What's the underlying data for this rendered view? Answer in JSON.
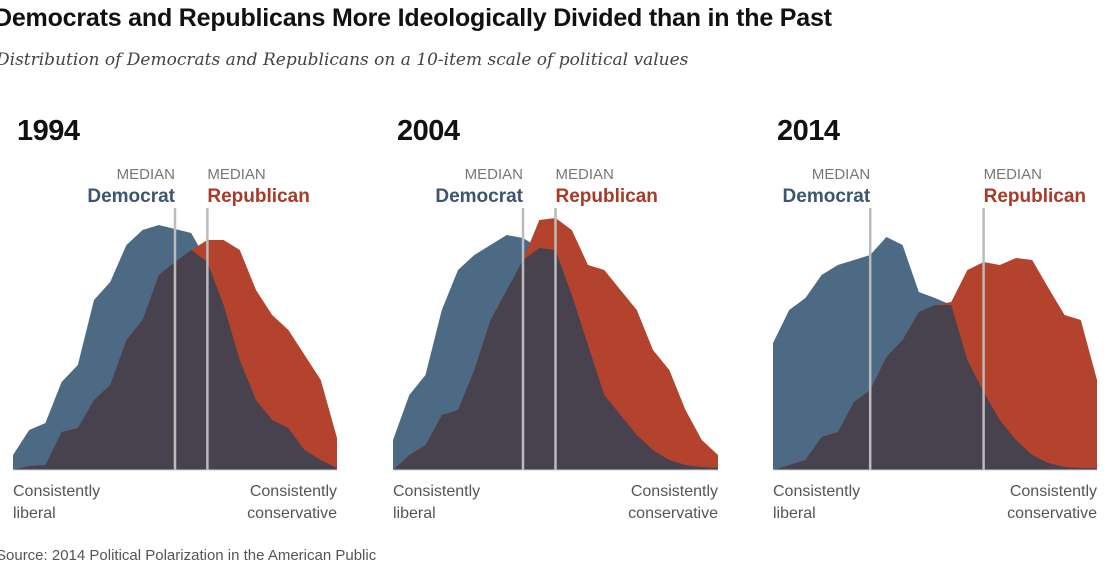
{
  "chart_data": [
    {
      "type": "area",
      "title": "1994",
      "x": [
        -10,
        -9,
        -8,
        -7,
        -6,
        -5,
        -4,
        -3,
        -2,
        -1,
        0,
        1,
        2,
        3,
        4,
        5,
        6,
        7,
        8,
        9,
        10
      ],
      "series": [
        {
          "name": "Democrat",
          "values": [
            15,
            40,
            47,
            88,
            105,
            170,
            188,
            225,
            240,
            245,
            241,
            237,
            208,
            165,
            110,
            70,
            50,
            42,
            20,
            10,
            2
          ]
        },
        {
          "name": "Republican",
          "values": [
            0,
            4,
            5,
            38,
            42,
            70,
            85,
            130,
            150,
            195,
            208,
            220,
            230,
            230,
            220,
            180,
            155,
            140,
            115,
            90,
            32
          ]
        }
      ],
      "medians": {
        "Democrat": 0,
        "Republican": 2
      },
      "left_label": "Consistently liberal",
      "right_label": "Consistently conservative"
    },
    {
      "type": "area",
      "title": "2004",
      "x": [
        -10,
        -9,
        -8,
        -7,
        -6,
        -5,
        -4,
        -3,
        -2,
        -1,
        0,
        1,
        2,
        3,
        4,
        5,
        6,
        7,
        8,
        9,
        10
      ],
      "series": [
        {
          "name": "Democrat",
          "values": [
            30,
            75,
            95,
            160,
            200,
            215,
            225,
            235,
            232,
            222,
            220,
            175,
            125,
            75,
            55,
            35,
            20,
            10,
            5,
            3,
            2
          ]
        },
        {
          "name": "Republican",
          "values": [
            0,
            15,
            25,
            55,
            60,
            100,
            150,
            180,
            210,
            250,
            252,
            240,
            205,
            200,
            180,
            160,
            120,
            100,
            60,
            30,
            15
          ]
        }
      ],
      "medians": {
        "Democrat": -2,
        "Republican": 0
      },
      "left_label": "Consistently liberal",
      "right_label": "Consistently conservative"
    },
    {
      "type": "area",
      "title": "2014",
      "x": [
        -10,
        -9,
        -8,
        -7,
        -6,
        -5,
        -4,
        -3,
        -2,
        -1,
        0,
        1,
        2,
        3,
        4,
        5,
        6,
        7,
        8,
        9,
        10
      ],
      "series": [
        {
          "name": "Democrat",
          "values": [
            127,
            160,
            172,
            195,
            205,
            210,
            215,
            233,
            225,
            178,
            172,
            165,
            110,
            78,
            50,
            30,
            15,
            7,
            3,
            2,
            2
          ]
        },
        {
          "name": "Republican",
          "values": [
            0,
            5,
            10,
            33,
            38,
            68,
            80,
            113,
            130,
            158,
            165,
            168,
            200,
            208,
            205,
            212,
            210,
            182,
            155,
            150,
            90
          ]
        }
      ],
      "medians": {
        "Democrat": -4,
        "Republican": 3
      },
      "left_label": "Consistently liberal",
      "right_label": "Consistently conservative"
    }
  ],
  "header": {
    "title": "Democrats and Republicans More Ideologically Divided than in the Past",
    "subtitle": "Distribution of Democrats and Republicans on a 10-item scale of political values"
  },
  "labels": {
    "median": "MEDIAN",
    "democrat": "Democrat",
    "republican": "Republican",
    "left_line1": "Consistently",
    "left_line2": "liberal",
    "right_line1": "Consistently",
    "right_line2": "conservative"
  },
  "source": "Source: 2014 Political Polarization in the American Public",
  "colors": {
    "democrat": "#4d6a85",
    "republican": "#b4432e",
    "overlap": "#48424f",
    "democrat_text": "#3b5670",
    "republican_text": "#a83a28",
    "median_line": "#bbbbbb"
  }
}
